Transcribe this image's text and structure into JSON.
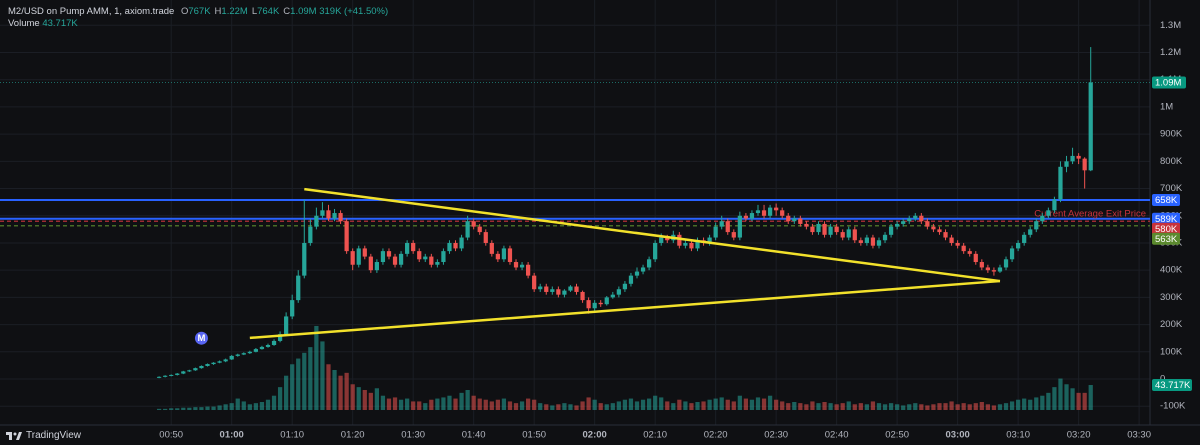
{
  "header": {
    "symbol": "M2/USD on Pump AMM, 1, axiom.trade",
    "ohlc": [
      {
        "key": "O",
        "value": "767K"
      },
      {
        "key": "H",
        "value": "1.22M"
      },
      {
        "key": "L",
        "value": "764K"
      },
      {
        "key": "C",
        "value": "1.09M"
      }
    ],
    "change": "319K (+41.50%)",
    "volume_label": "Volume",
    "volume_value": "43.717K"
  },
  "footer": {
    "brand": "TradingView"
  },
  "chart_data": {
    "type": "candlestick",
    "up_color": "#26a69a",
    "down_color": "#ef5350",
    "xlim": [
      21.7,
      211.8
    ],
    "ylim": [
      -169000,
      1393000
    ],
    "volume_lim": [
      0,
      600000
    ],
    "grid": true,
    "xticks": [
      {
        "value": 50,
        "label": "00:50"
      },
      {
        "value": 60,
        "label": "01:00"
      },
      {
        "value": 70,
        "label": "01:10"
      },
      {
        "value": 80,
        "label": "01:20"
      },
      {
        "value": 90,
        "label": "01:30"
      },
      {
        "value": 100,
        "label": "01:40"
      },
      {
        "value": 110,
        "label": "01:50"
      },
      {
        "value": 120,
        "label": "02:00"
      },
      {
        "value": 130,
        "label": "02:10"
      },
      {
        "value": 140,
        "label": "02:20"
      },
      {
        "value": 150,
        "label": "02:30"
      },
      {
        "value": 160,
        "label": "02:40"
      },
      {
        "value": 170,
        "label": "02:50"
      },
      {
        "value": 180,
        "label": "03:00"
      },
      {
        "value": 190,
        "label": "03:10"
      },
      {
        "value": 200,
        "label": "03:20"
      },
      {
        "value": 210,
        "label": "03:30"
      }
    ],
    "yticks": [
      {
        "value": -100000,
        "label": "-100K"
      },
      0,
      {
        "value": 100000,
        "label": "100K"
      },
      {
        "value": 200000,
        "label": "200K"
      },
      {
        "value": 300000,
        "label": "300K"
      },
      {
        "value": 400000,
        "label": "400K"
      },
      {
        "value": 500000,
        "label": "500K"
      },
      {
        "value": 600000,
        "label": "600K"
      },
      {
        "value": 700000,
        "label": "700K"
      },
      {
        "value": 800000,
        "label": "800K"
      },
      {
        "value": 900000,
        "label": "900K"
      },
      {
        "value": 1000000,
        "label": "1M"
      },
      {
        "value": 1100000,
        "label": "1.1M"
      },
      {
        "value": 1200000,
        "label": "1.2M"
      },
      {
        "value": 1300000,
        "label": "1.3M"
      }
    ],
    "x": [
      48,
      49,
      50,
      51,
      52,
      53,
      54,
      55,
      56,
      57,
      58,
      59,
      60,
      61,
      62,
      63,
      64,
      65,
      66,
      67,
      68,
      69,
      70,
      71,
      72,
      73,
      74,
      75,
      76,
      77,
      78,
      79,
      80,
      81,
      82,
      83,
      84,
      85,
      86,
      87,
      88,
      89,
      90,
      91,
      92,
      93,
      94,
      95,
      96,
      97,
      98,
      99,
      100,
      101,
      102,
      103,
      104,
      105,
      106,
      107,
      108,
      109,
      110,
      111,
      112,
      113,
      114,
      115,
      116,
      117,
      118,
      119,
      120,
      121,
      122,
      123,
      124,
      125,
      126,
      127,
      128,
      129,
      130,
      131,
      132,
      133,
      134,
      135,
      136,
      137,
      138,
      139,
      140,
      141,
      142,
      143,
      144,
      145,
      146,
      147,
      148,
      149,
      150,
      151,
      152,
      153,
      154,
      155,
      156,
      157,
      158,
      159,
      160,
      161,
      162,
      163,
      164,
      165,
      166,
      167,
      168,
      169,
      170,
      171,
      172,
      173,
      174,
      175,
      176,
      177,
      178,
      179,
      180,
      181,
      182,
      183,
      184,
      185,
      186,
      187,
      188,
      189,
      190,
      191,
      192,
      193,
      194,
      195,
      196,
      197,
      198,
      199,
      200,
      201,
      202
    ],
    "open": [
      5000,
      8000,
      12000,
      15000,
      20000,
      28000,
      32000,
      40000,
      48000,
      55000,
      60000,
      65000,
      72000,
      85000,
      90000,
      95000,
      100000,
      110000,
      118000,
      125000,
      140000,
      165000,
      230000,
      290000,
      380000,
      500000,
      560000,
      600000,
      620000,
      590000,
      610000,
      580000,
      470000,
      420000,
      480000,
      450000,
      400000,
      430000,
      470000,
      450000,
      420000,
      460000,
      500000,
      470000,
      440000,
      450000,
      420000,
      430000,
      470000,
      500000,
      480000,
      520000,
      580000,
      560000,
      540000,
      500000,
      460000,
      440000,
      480000,
      430000,
      410000,
      420000,
      380000,
      330000,
      340000,
      320000,
      330000,
      310000,
      325000,
      340000,
      320000,
      290000,
      260000,
      280000,
      275000,
      300000,
      310000,
      330000,
      350000,
      380000,
      395000,
      410000,
      440000,
      500000,
      520000,
      510000,
      530000,
      490000,
      500000,
      480000,
      510000,
      500000,
      520000,
      560000,
      580000,
      540000,
      520000,
      600000,
      590000,
      610000,
      620000,
      600000,
      630000,
      620000,
      600000,
      580000,
      590000,
      570000,
      560000,
      540000,
      570000,
      530000,
      560000,
      540000,
      520000,
      550000,
      510000,
      500000,
      520000,
      490000,
      510000,
      530000,
      560000,
      570000,
      580000,
      590000,
      600000,
      580000,
      560000,
      550000,
      540000,
      520000,
      500000,
      490000,
      470000,
      460000,
      430000,
      410000,
      400000,
      395000,
      410000,
      440000,
      480000,
      500000,
      530000,
      550000,
      580000,
      600000,
      620000,
      660000,
      780000,
      800000,
      820000,
      810000,
      767000
    ],
    "high": [
      10000,
      14000,
      17000,
      22000,
      30000,
      34000,
      42000,
      50000,
      57000,
      62000,
      68000,
      75000,
      88000,
      93000,
      98000,
      104000,
      114000,
      122000,
      130000,
      146000,
      175000,
      245000,
      310000,
      400000,
      660000,
      590000,
      630000,
      650000,
      640000,
      625000,
      620000,
      590000,
      480000,
      490000,
      490000,
      460000,
      440000,
      480000,
      480000,
      460000,
      470000,
      510000,
      510000,
      480000,
      460000,
      460000,
      440000,
      480000,
      510000,
      510000,
      530000,
      600000,
      590000,
      570000,
      550000,
      510000,
      470000,
      490000,
      490000,
      440000,
      430000,
      430000,
      390000,
      350000,
      350000,
      340000,
      340000,
      330000,
      345000,
      350000,
      325000,
      300000,
      290000,
      290000,
      305000,
      320000,
      340000,
      360000,
      390000,
      410000,
      420000,
      450000,
      510000,
      535000,
      530000,
      545000,
      540000,
      510000,
      510000,
      520000,
      520000,
      530000,
      575000,
      600000,
      590000,
      550000,
      615000,
      610000,
      620000,
      640000,
      640000,
      640000,
      645000,
      630000,
      610000,
      600000,
      600000,
      580000,
      570000,
      580000,
      580000,
      570000,
      570000,
      550000,
      560000,
      560000,
      520000,
      530000,
      530000,
      520000,
      540000,
      570000,
      580000,
      590000,
      600000,
      610000,
      610000,
      590000,
      570000,
      560000,
      550000,
      530000,
      510000,
      500000,
      480000,
      470000,
      440000,
      420000,
      410000,
      420000,
      450000,
      490000,
      510000,
      540000,
      560000,
      590000,
      610000,
      630000,
      670000,
      800000,
      820000,
      850000,
      830000,
      815000,
      1220000
    ],
    "low": [
      3000,
      6000,
      10000,
      13000,
      18000,
      26000,
      30000,
      38000,
      46000,
      52000,
      58000,
      62000,
      70000,
      82000,
      88000,
      92000,
      98000,
      108000,
      115000,
      122000,
      135000,
      160000,
      220000,
      280000,
      370000,
      490000,
      550000,
      590000,
      580000,
      580000,
      570000,
      460000,
      400000,
      410000,
      440000,
      390000,
      390000,
      420000,
      440000,
      410000,
      410000,
      450000,
      460000,
      430000,
      430000,
      410000,
      410000,
      420000,
      460000,
      470000,
      470000,
      510000,
      550000,
      530000,
      490000,
      450000,
      430000,
      430000,
      420000,
      400000,
      400000,
      370000,
      320000,
      320000,
      310000,
      310000,
      300000,
      300000,
      320000,
      310000,
      280000,
      240000,
      250000,
      265000,
      270000,
      295000,
      300000,
      320000,
      340000,
      370000,
      385000,
      400000,
      430000,
      490000,
      500000,
      500000,
      480000,
      480000,
      470000,
      470000,
      490000,
      490000,
      510000,
      550000,
      530000,
      510000,
      510000,
      580000,
      580000,
      600000,
      590000,
      590000,
      600000,
      590000,
      570000,
      570000,
      560000,
      550000,
      530000,
      530000,
      520000,
      520000,
      530000,
      510000,
      510000,
      500000,
      490000,
      490000,
      480000,
      480000,
      500000,
      520000,
      550000,
      560000,
      570000,
      580000,
      570000,
      550000,
      540000,
      530000,
      510000,
      490000,
      480000,
      460000,
      450000,
      420000,
      400000,
      390000,
      380000,
      390000,
      400000,
      430000,
      470000,
      490000,
      520000,
      540000,
      570000,
      590000,
      610000,
      650000,
      760000,
      790000,
      790000,
      700000,
      764000
    ],
    "close": [
      8000,
      12000,
      15000,
      20000,
      28000,
      32000,
      40000,
      48000,
      55000,
      60000,
      65000,
      72000,
      85000,
      90000,
      95000,
      100000,
      110000,
      118000,
      125000,
      140000,
      165000,
      230000,
      290000,
      380000,
      500000,
      560000,
      600000,
      620000,
      590000,
      610000,
      580000,
      470000,
      420000,
      480000,
      450000,
      400000,
      430000,
      470000,
      450000,
      420000,
      460000,
      500000,
      470000,
      440000,
      450000,
      420000,
      430000,
      470000,
      500000,
      480000,
      520000,
      580000,
      560000,
      540000,
      500000,
      460000,
      440000,
      480000,
      430000,
      410000,
      420000,
      380000,
      330000,
      340000,
      320000,
      330000,
      310000,
      325000,
      340000,
      320000,
      290000,
      260000,
      280000,
      275000,
      300000,
      310000,
      330000,
      350000,
      380000,
      395000,
      410000,
      440000,
      500000,
      520000,
      510000,
      530000,
      490000,
      500000,
      480000,
      510000,
      500000,
      520000,
      560000,
      580000,
      540000,
      520000,
      600000,
      590000,
      610000,
      620000,
      600000,
      630000,
      620000,
      600000,
      580000,
      590000,
      570000,
      560000,
      540000,
      570000,
      530000,
      560000,
      540000,
      520000,
      550000,
      510000,
      500000,
      520000,
      490000,
      510000,
      530000,
      560000,
      570000,
      580000,
      590000,
      600000,
      580000,
      560000,
      550000,
      540000,
      520000,
      500000,
      490000,
      470000,
      460000,
      430000,
      410000,
      400000,
      395000,
      410000,
      440000,
      480000,
      500000,
      530000,
      550000,
      580000,
      600000,
      620000,
      660000,
      780000,
      800000,
      820000,
      810000,
      767000,
      1090000
    ],
    "volume": [
      2000,
      2000,
      3000,
      3000,
      4000,
      4000,
      5000,
      5000,
      6000,
      6000,
      8000,
      10000,
      12000,
      20000,
      15000,
      10000,
      12000,
      14000,
      18000,
      25000,
      40000,
      60000,
      80000,
      90000,
      100000,
      110000,
      147000,
      120000,
      80000,
      70000,
      60000,
      65000,
      45000,
      40000,
      35000,
      30000,
      38000,
      25000,
      20000,
      22000,
      18000,
      20000,
      15000,
      15000,
      12000,
      18000,
      20000,
      22000,
      25000,
      20000,
      30000,
      35000,
      25000,
      20000,
      18000,
      15000,
      18000,
      20000,
      15000,
      12000,
      15000,
      20000,
      18000,
      12000,
      10000,
      8000,
      10000,
      12000,
      10000,
      8000,
      15000,
      22000,
      18000,
      12000,
      10000,
      12000,
      15000,
      18000,
      20000,
      15000,
      18000,
      20000,
      25000,
      22000,
      15000,
      12000,
      18000,
      15000,
      12000,
      14000,
      15000,
      18000,
      20000,
      22000,
      18000,
      15000,
      25000,
      20000,
      18000,
      22000,
      20000,
      25000,
      18000,
      15000,
      12000,
      14000,
      12000,
      10000,
      15000,
      12000,
      14000,
      12000,
      10000,
      12000,
      15000,
      10000,
      12000,
      10000,
      15000,
      12000,
      10000,
      12000,
      10000,
      8000,
      10000,
      12000,
      10000,
      8000,
      10000,
      12000,
      12000,
      15000,
      10000,
      12000,
      10000,
      12000,
      14000,
      10000,
      8000,
      10000,
      12000,
      15000,
      18000,
      20000,
      18000,
      22000,
      25000,
      30000,
      40000,
      55000,
      45000,
      38000,
      30000,
      30000,
      43717
    ],
    "close_label": "1.09M",
    "volume_last_label": "43.717K",
    "price_lines": [
      {
        "value": 658000,
        "label": "658K",
        "color": "#2962ff",
        "style": "solid"
      },
      {
        "value": 589000,
        "label": "589K",
        "color": "#2962ff",
        "style": "solid"
      },
      {
        "value": 580000,
        "label": "580K",
        "color": "#c8323c",
        "style": "dashed"
      },
      {
        "value": 563000,
        "label": "563K",
        "color": "#5b8a2e",
        "style": "dashed"
      }
    ],
    "annotation": "Current Average Exit Price",
    "marker": {
      "x": 55,
      "y": 150000,
      "label": "M"
    },
    "trendline_color": "#f2e12b",
    "trendlines": [
      {
        "x": [
          72,
          187
        ],
        "y": [
          698000,
          360000
        ]
      },
      {
        "x": [
          63,
          187
        ],
        "y": [
          151000,
          360000
        ]
      }
    ]
  }
}
